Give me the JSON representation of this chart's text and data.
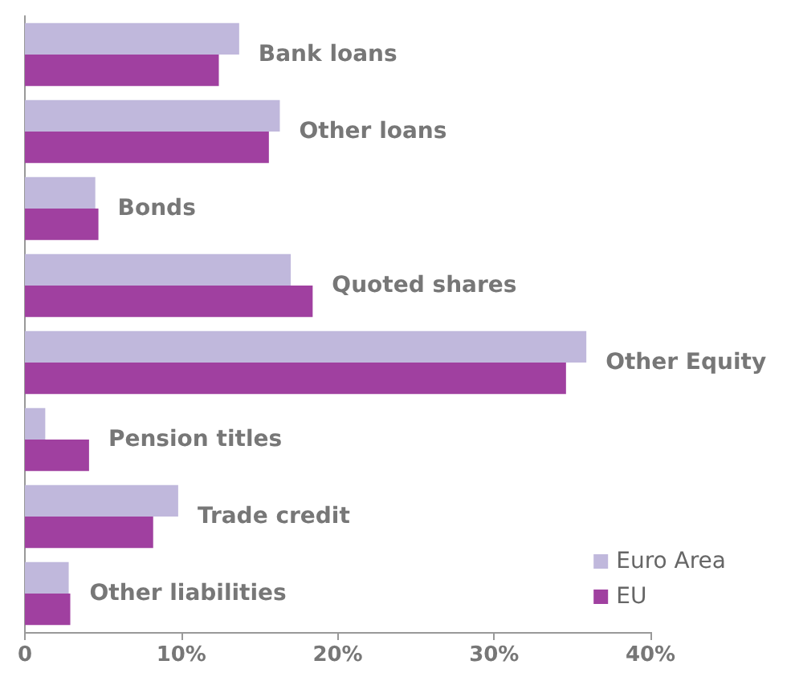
{
  "chart_data": {
    "type": "bar",
    "orientation": "horizontal",
    "categories": [
      "Bank loans",
      "Other loans",
      "Bonds",
      "Quoted shares",
      "Other Equity",
      "Pension titles",
      "Trade credit",
      "Other liabilities"
    ],
    "series": [
      {
        "name": "Euro Area",
        "color": "#c0b8dc",
        "values": [
          13.7,
          16.3,
          4.5,
          17.0,
          35.9,
          1.3,
          9.8,
          2.8
        ]
      },
      {
        "name": "EU",
        "color": "#a040a0",
        "values": [
          12.4,
          15.6,
          4.7,
          18.4,
          34.6,
          4.1,
          8.2,
          2.9
        ]
      }
    ],
    "xlim": [
      0,
      40
    ],
    "xticks": [
      0,
      {
        "value": 10,
        "label": "10%"
      },
      {
        "value": 20,
        "label": "20%"
      },
      {
        "value": 30,
        "label": "30%"
      },
      {
        "value": 40,
        "label": "40%"
      }
    ],
    "grid": false,
    "legend": "bottom right"
  }
}
